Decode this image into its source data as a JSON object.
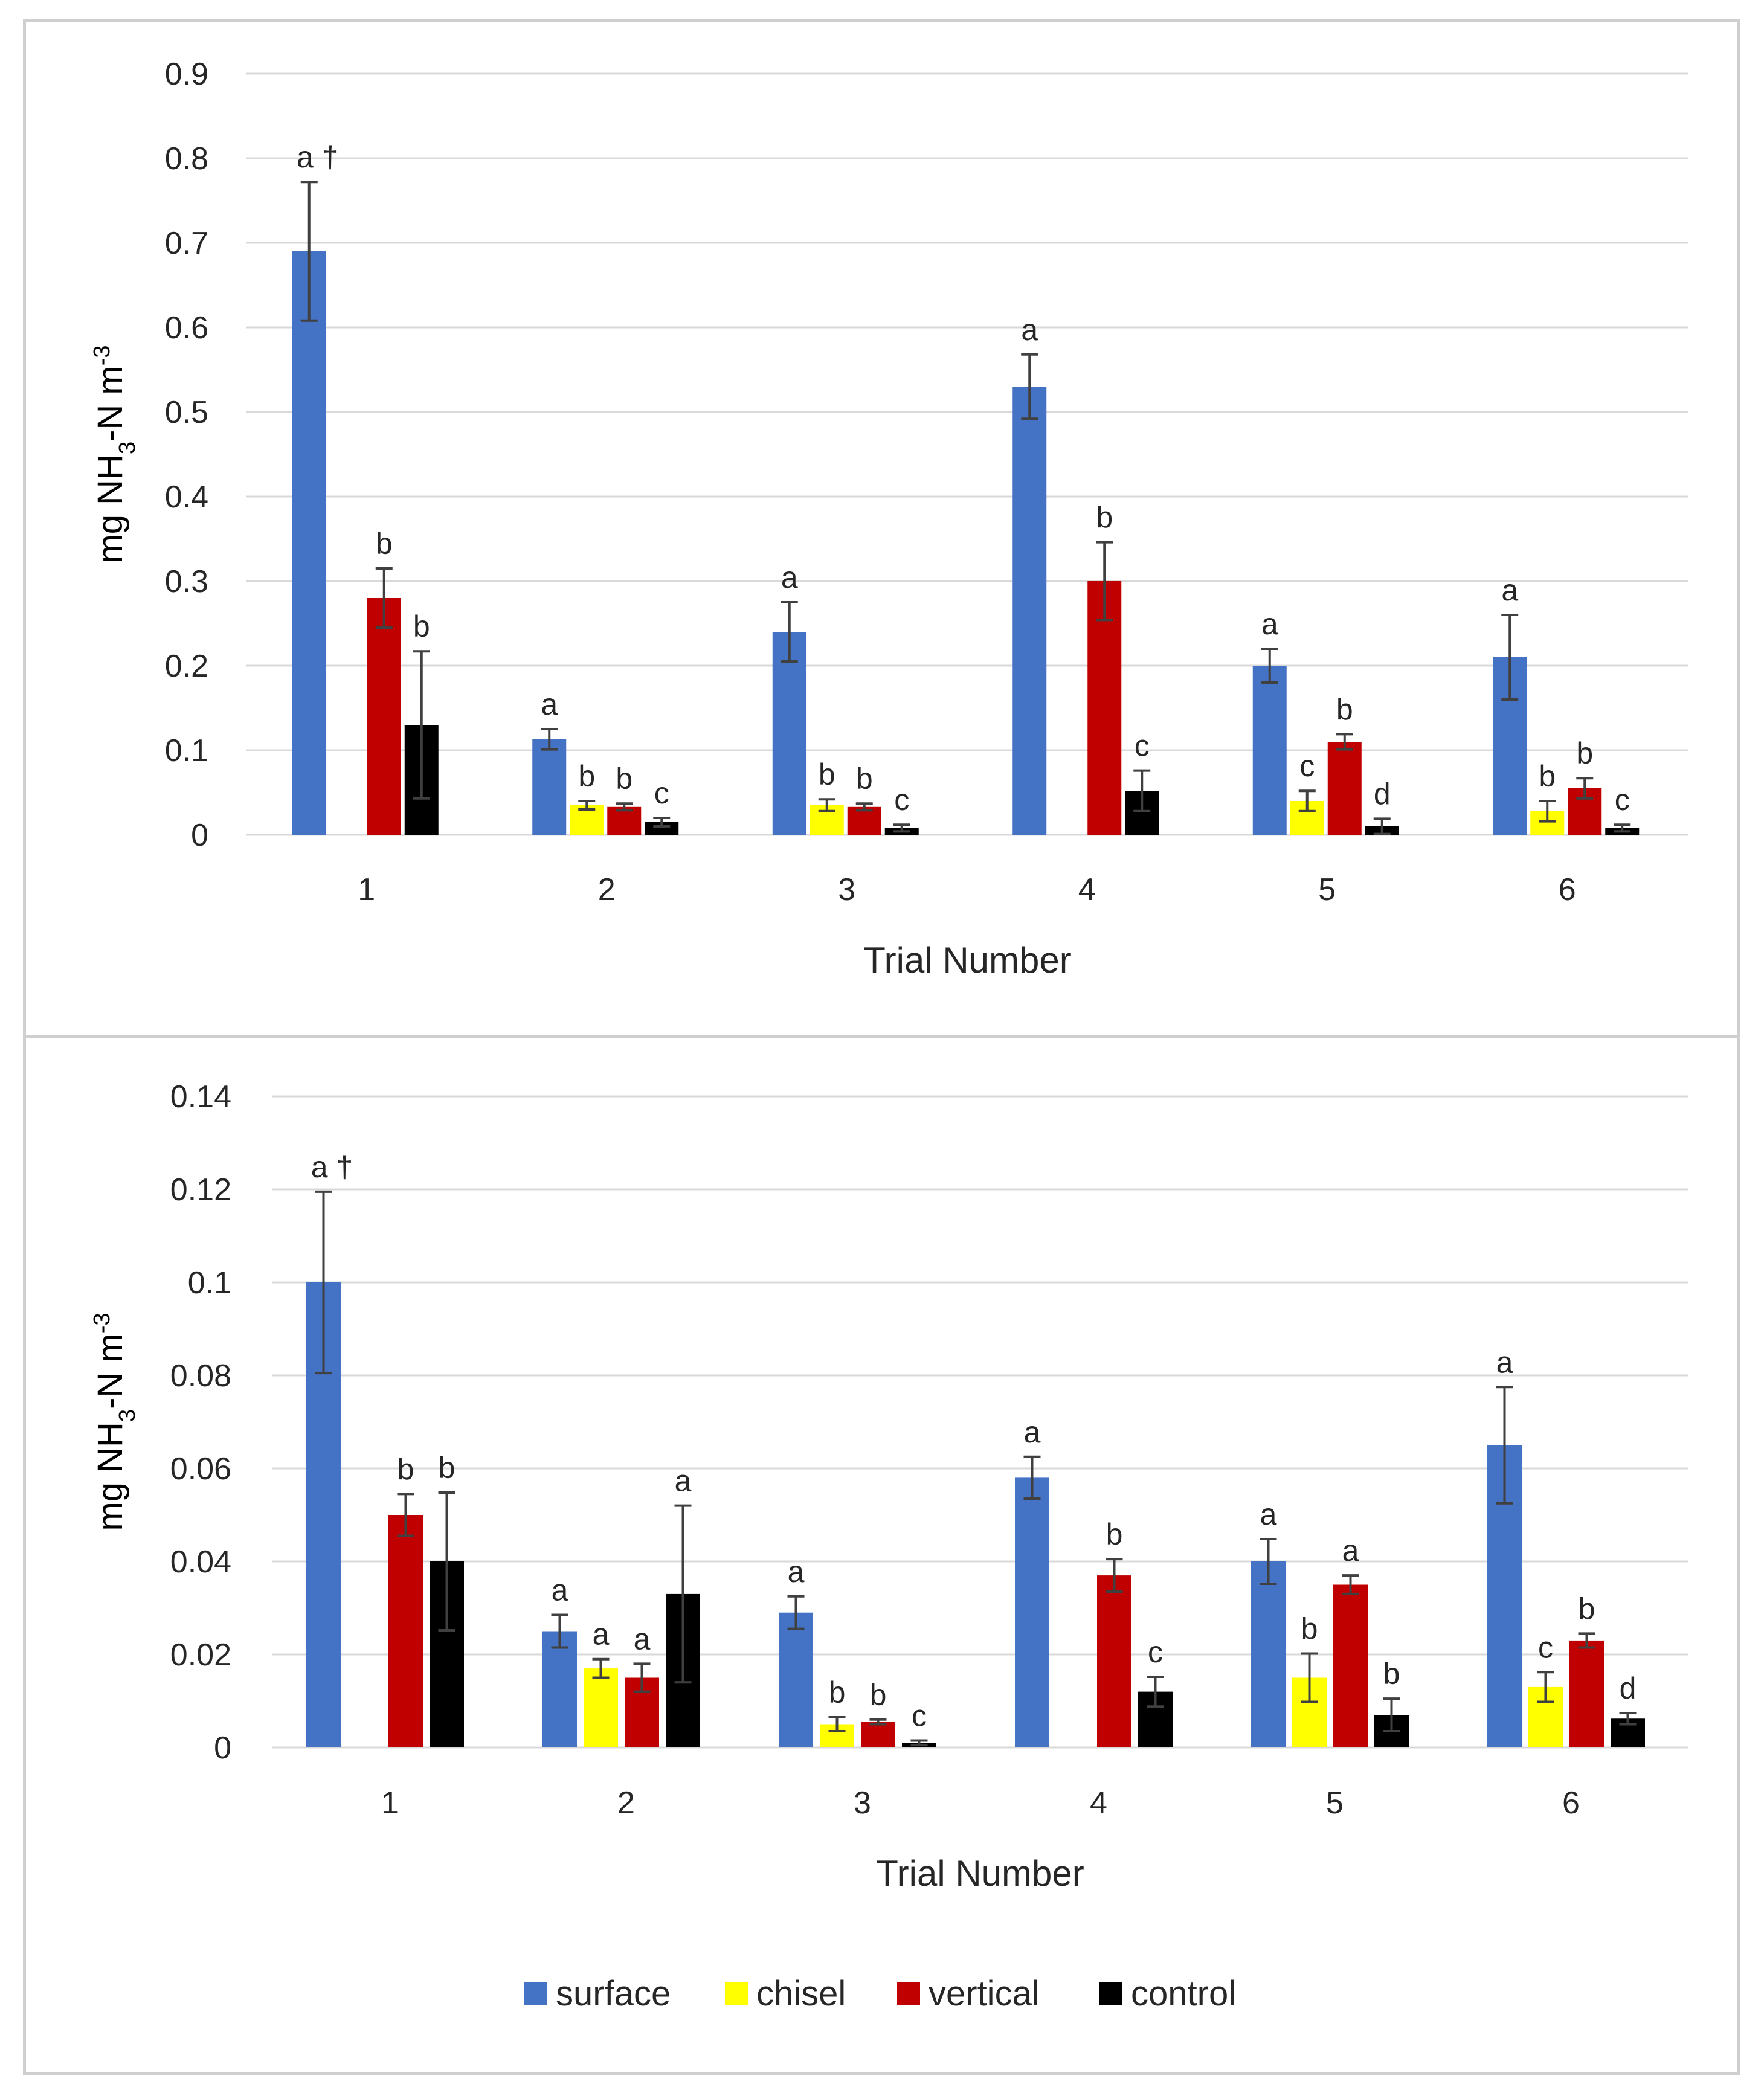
{
  "colors": {
    "surface": "#4472c4",
    "chisel": "#ffff00",
    "vertical": "#c00000",
    "control": "#000000",
    "grid": "#d9d9d9",
    "errorbar": "#404040"
  },
  "legend": {
    "surface": "surface",
    "chisel": "chisel",
    "vertical": "vertical",
    "control": "control"
  },
  "chart_data": [
    {
      "type": "bar",
      "title": "",
      "xlabel": "Trial Number",
      "ylabel": {
        "prefix": "mg NH",
        "sub": "3",
        "mid": "-N m",
        "sup": "-3"
      },
      "ylim": [
        0,
        0.9
      ],
      "yticks": [
        "0",
        "0.1",
        "0.2",
        "0.3",
        "0.4",
        "0.5",
        "0.6",
        "0.7",
        "0.8",
        "0.9"
      ],
      "categories": [
        "1",
        "2",
        "3",
        "4",
        "5",
        "6"
      ],
      "dagger": "†",
      "series": [
        {
          "name": "surface",
          "key": "surface",
          "values": [
            0.69,
            0.113,
            0.24,
            0.53,
            0.2,
            0.21
          ],
          "errors": [
            0.082,
            0.012,
            0.035,
            0.038,
            0.02,
            0.05
          ],
          "letters": [
            "a",
            "a",
            "a",
            "a",
            "a",
            "a"
          ]
        },
        {
          "name": "chisel",
          "key": "chisel",
          "values": [
            null,
            0.035,
            0.035,
            null,
            0.04,
            0.028
          ],
          "errors": [
            null,
            0.005,
            0.007,
            null,
            0.012,
            0.012
          ],
          "letters": [
            "",
            "b",
            "b",
            "",
            "c",
            "b"
          ]
        },
        {
          "name": "vertical",
          "key": "vertical",
          "values": [
            0.28,
            0.033,
            0.033,
            0.3,
            0.11,
            0.055
          ],
          "errors": [
            0.035,
            0.004,
            0.004,
            0.046,
            0.009,
            0.012
          ],
          "letters": [
            "b",
            "b",
            "b",
            "b",
            "b",
            "b"
          ]
        },
        {
          "name": "control",
          "key": "control",
          "values": [
            0.13,
            0.015,
            0.008,
            0.052,
            0.01,
            0.008
          ],
          "errors": [
            0.087,
            0.005,
            0.004,
            0.024,
            0.009,
            0.004
          ],
          "letters": [
            "b",
            "c",
            "c",
            "c",
            "d",
            "c"
          ]
        }
      ]
    },
    {
      "type": "bar",
      "title": "",
      "xlabel": "Trial Number",
      "ylabel": {
        "prefix": "mg NH",
        "sub": "3",
        "mid": "-N m",
        "sup": "-3"
      },
      "ylim": [
        0,
        0.14
      ],
      "yticks": [
        "0",
        "0.02",
        "0.04",
        "0.06",
        "0.08",
        "0.1",
        "0.12",
        "0.14"
      ],
      "categories": [
        "1",
        "2",
        "3",
        "4",
        "5",
        "6"
      ],
      "dagger": "†",
      "series": [
        {
          "name": "surface",
          "key": "surface",
          "values": [
            0.1,
            0.025,
            0.029,
            0.058,
            0.04,
            0.065
          ],
          "errors": [
            0.0195,
            0.0035,
            0.0035,
            0.0045,
            0.0048,
            0.0125
          ],
          "letters": [
            "a",
            "a",
            "a",
            "a",
            "a",
            "a"
          ]
        },
        {
          "name": "chisel",
          "key": "chisel",
          "values": [
            null,
            0.017,
            0.005,
            null,
            0.015,
            0.013
          ],
          "errors": [
            null,
            0.002,
            0.0015,
            null,
            0.0052,
            0.0032
          ],
          "letters": [
            "",
            "a",
            "b",
            "",
            "b",
            "c"
          ]
        },
        {
          "name": "vertical",
          "key": "vertical",
          "values": [
            0.05,
            0.015,
            0.0055,
            0.037,
            0.035,
            0.023
          ],
          "errors": [
            0.0045,
            0.003,
            0.0005,
            0.0035,
            0.002,
            0.0015
          ],
          "letters": [
            "b",
            "a",
            "b",
            "b",
            "a",
            "b"
          ]
        },
        {
          "name": "control",
          "key": "control",
          "values": [
            0.04,
            0.033,
            0.001,
            0.012,
            0.007,
            0.0062
          ],
          "errors": [
            0.0148,
            0.019,
            0.0005,
            0.0032,
            0.0035,
            0.0012
          ],
          "letters": [
            "b",
            "a",
            "c",
            "c",
            "b",
            "d"
          ]
        }
      ]
    }
  ]
}
